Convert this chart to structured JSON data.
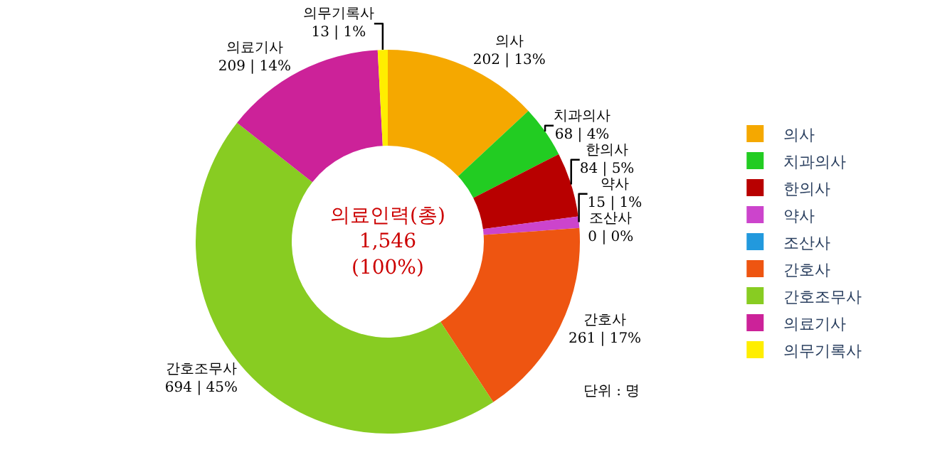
{
  "chart_data": {
    "type": "donut",
    "categories": [
      "의사",
      "치과의사",
      "한의사",
      "약사",
      "조산사",
      "간호사",
      "간호조무사",
      "의료기사",
      "의무기록사"
    ],
    "values": [
      202,
      68,
      84,
      15,
      0,
      261,
      694,
      209,
      13
    ],
    "value_labels": [
      "202 | 13%",
      "68 | 4%",
      "84 | 5%",
      "15 | 1%",
      "0 | 0%",
      "261 | 17%",
      "694 | 45%",
      "209 | 14%",
      "13 | 1%"
    ],
    "colors": [
      "#f5a800",
      "#22cc22",
      "#b80000",
      "#cc44cc",
      "#2299dd",
      "#ee5511",
      "#88cc22",
      "#cc2299",
      "#ffee00"
    ],
    "annotations": [
      "의료인력(총)\n1,546\n(100%)",
      "단위 : 명"
    ],
    "legend": "right"
  }
}
